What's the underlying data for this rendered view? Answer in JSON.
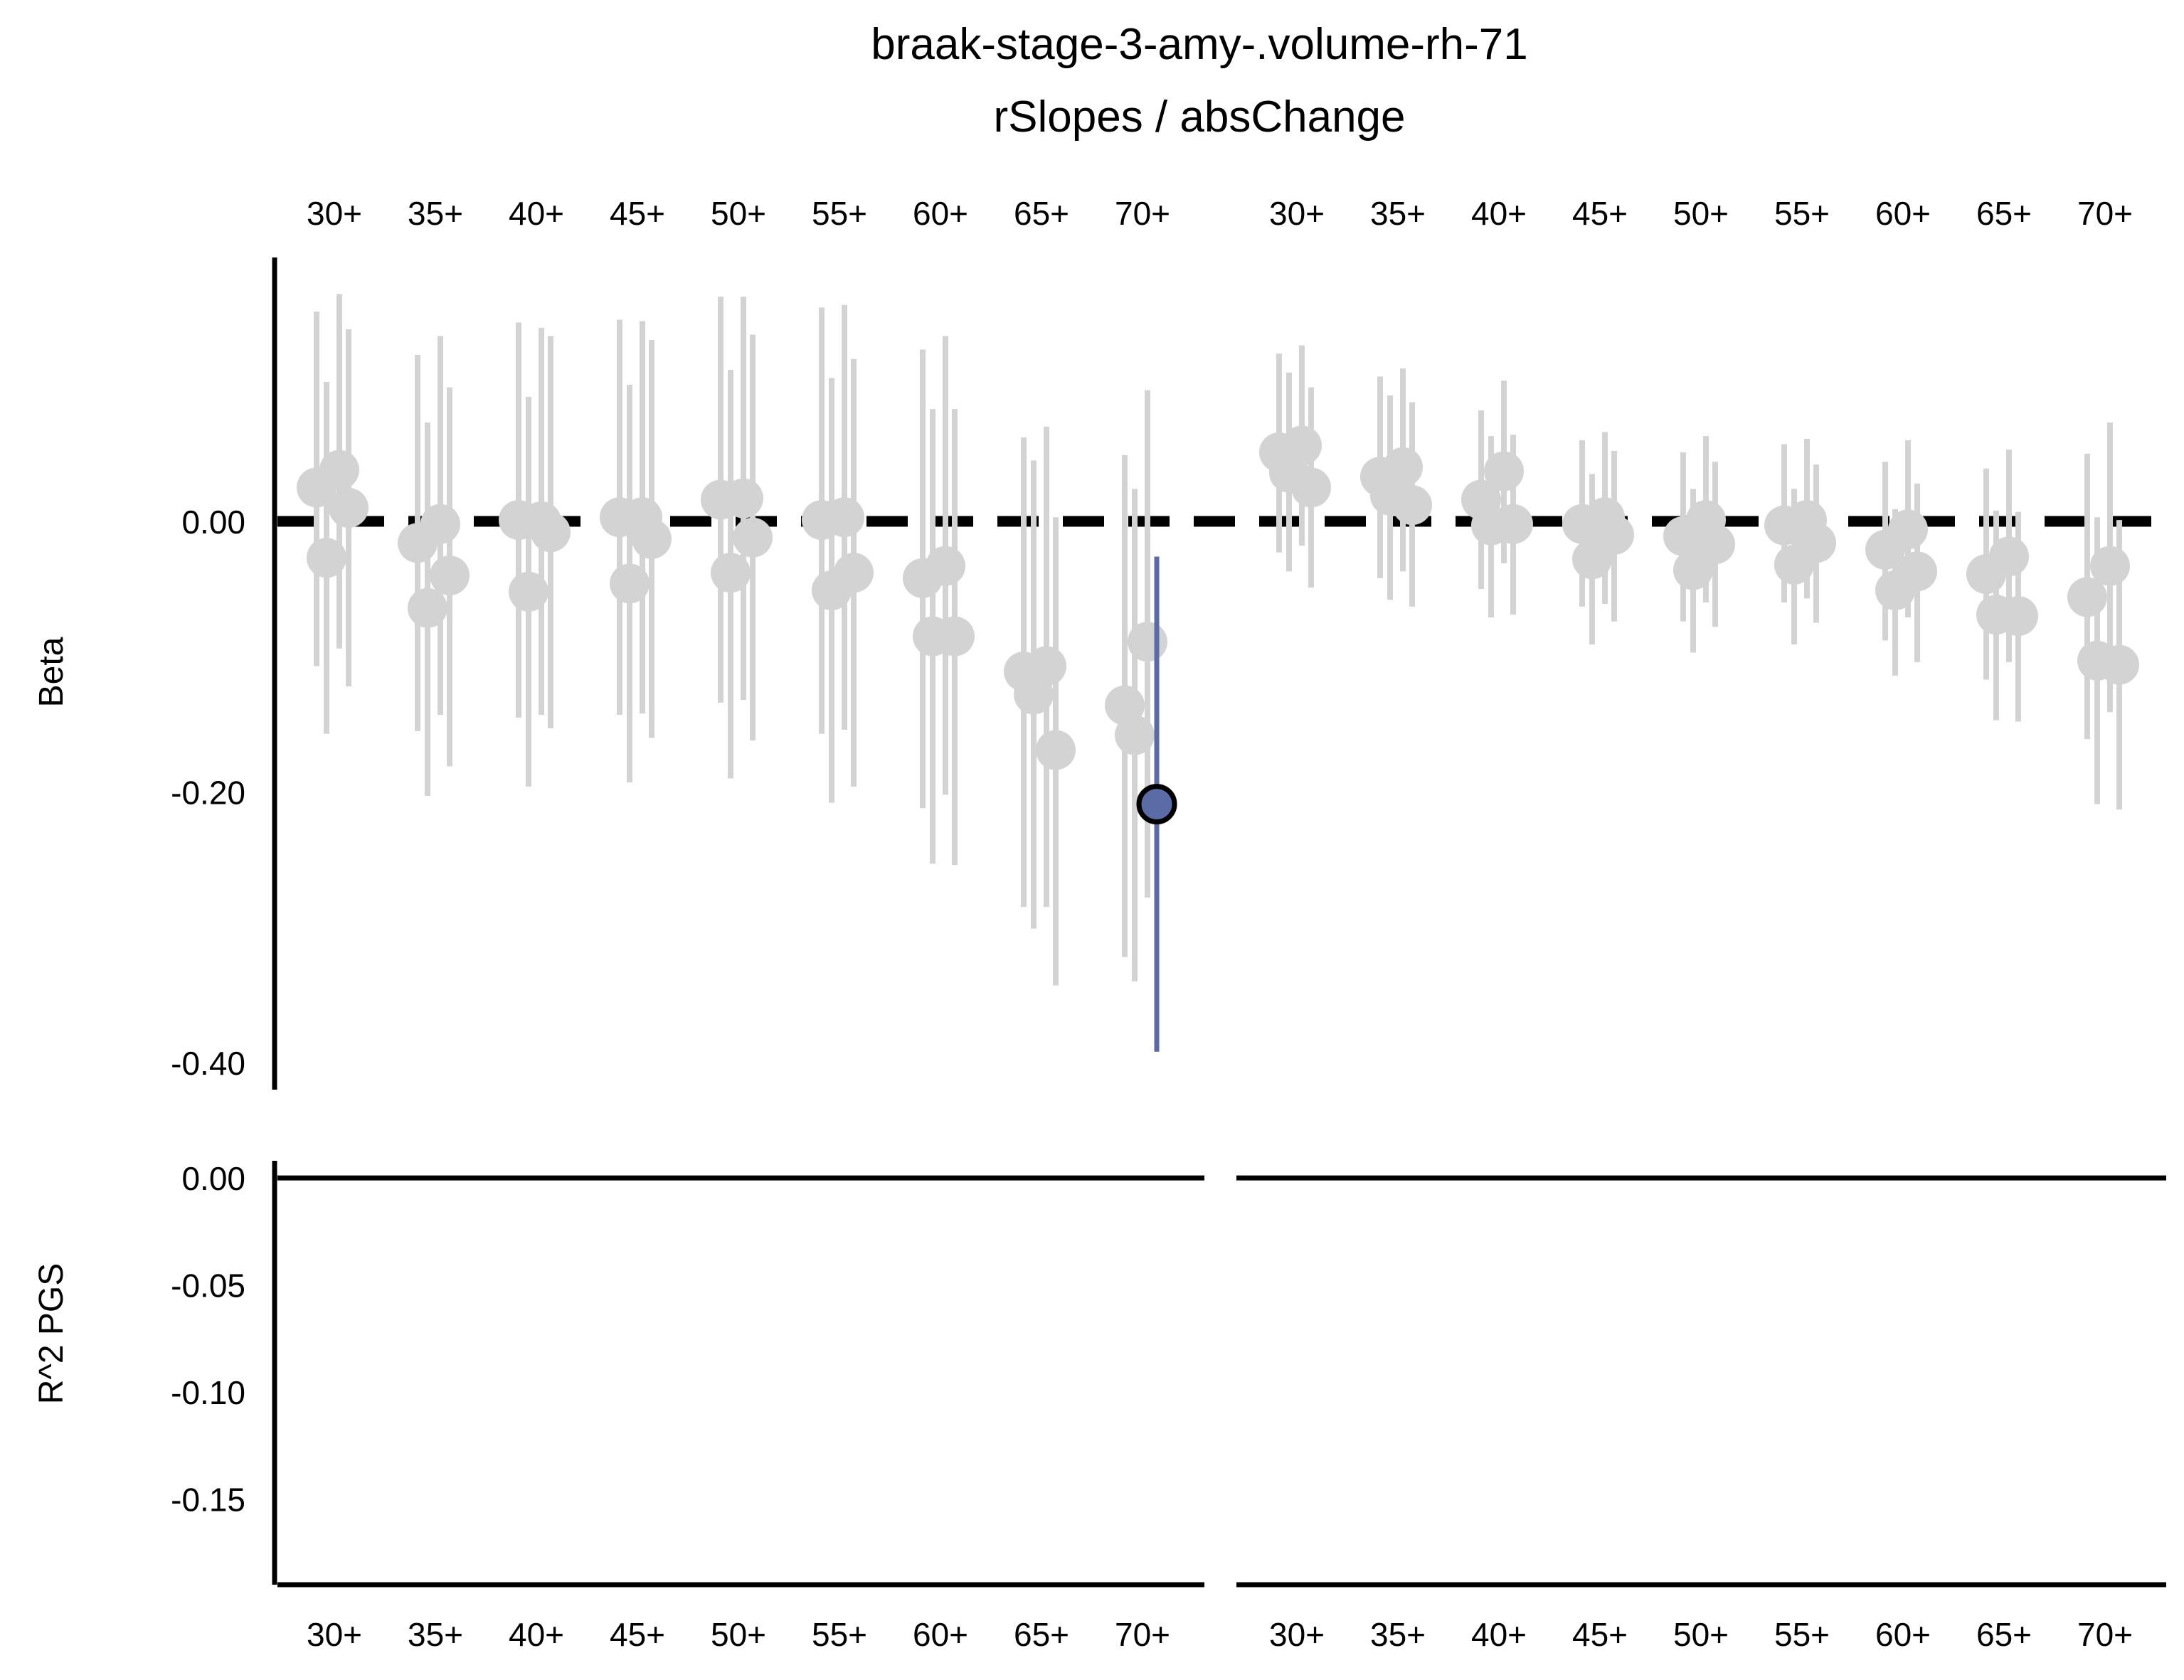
{
  "chart_data": {
    "type": "scatter",
    "title": "braak-stage-3-amy-.volume-rh-71",
    "subtitle": "rSlopes / absChange",
    "categories": [
      "30+",
      "35+",
      "40+",
      "45+",
      "50+",
      "55+",
      "60+",
      "65+",
      "70+"
    ],
    "panels": [
      {
        "ylabel": "Beta",
        "ylim": [
          -0.42,
          0.195
        ],
        "yticks": [
          0.0,
          -0.2,
          -0.4
        ],
        "ytick_labels": [
          "0.00",
          "-0.20",
          "-0.40"
        ],
        "reference_line": 0.0,
        "facets": [
          {
            "groups": [
              {
                "category": "30+",
                "points": [
                  {
                    "beta": 0.025,
                    "lo": -0.107,
                    "hi": 0.155
                  },
                  {
                    "beta": -0.027,
                    "lo": -0.157,
                    "hi": 0.103
                  },
                  {
                    "beta": 0.038,
                    "lo": -0.094,
                    "hi": 0.168
                  },
                  {
                    "beta": 0.01,
                    "lo": -0.122,
                    "hi": 0.142
                  }
                ]
              },
              {
                "category": "35+",
                "points": [
                  {
                    "beta": -0.016,
                    "lo": -0.155,
                    "hi": 0.123
                  },
                  {
                    "beta": -0.064,
                    "lo": -0.203,
                    "hi": 0.073
                  },
                  {
                    "beta": -0.002,
                    "lo": -0.143,
                    "hi": 0.137
                  },
                  {
                    "beta": -0.04,
                    "lo": -0.181,
                    "hi": 0.099
                  }
                ]
              },
              {
                "category": "40+",
                "points": [
                  {
                    "beta": 0.001,
                    "lo": -0.145,
                    "hi": 0.147
                  },
                  {
                    "beta": -0.052,
                    "lo": -0.196,
                    "hi": 0.092
                  },
                  {
                    "beta": 0.0,
                    "lo": -0.143,
                    "hi": 0.143
                  },
                  {
                    "beta": -0.008,
                    "lo": -0.153,
                    "hi": 0.137
                  }
                ]
              },
              {
                "category": "45+",
                "points": [
                  {
                    "beta": 0.003,
                    "lo": -0.143,
                    "hi": 0.149
                  },
                  {
                    "beta": -0.046,
                    "lo": -0.193,
                    "hi": 0.101
                  },
                  {
                    "beta": 0.003,
                    "lo": -0.142,
                    "hi": 0.148
                  },
                  {
                    "beta": -0.013,
                    "lo": -0.16,
                    "hi": 0.134
                  }
                ]
              },
              {
                "category": "50+",
                "points": [
                  {
                    "beta": 0.016,
                    "lo": -0.134,
                    "hi": 0.166
                  },
                  {
                    "beta": -0.038,
                    "lo": -0.19,
                    "hi": 0.112
                  },
                  {
                    "beta": 0.017,
                    "lo": -0.132,
                    "hi": 0.166
                  },
                  {
                    "beta": -0.012,
                    "lo": -0.162,
                    "hi": 0.138
                  }
                ]
              },
              {
                "category": "55+",
                "points": [
                  {
                    "beta": 0.001,
                    "lo": -0.157,
                    "hi": 0.158
                  },
                  {
                    "beta": -0.051,
                    "lo": -0.208,
                    "hi": 0.106
                  },
                  {
                    "beta": 0.003,
                    "lo": -0.154,
                    "hi": 0.16
                  },
                  {
                    "beta": -0.038,
                    "lo": -0.196,
                    "hi": 0.12
                  }
                ]
              },
              {
                "category": "60+",
                "points": [
                  {
                    "beta": -0.042,
                    "lo": -0.212,
                    "hi": 0.127
                  },
                  {
                    "beta": -0.085,
                    "lo": -0.253,
                    "hi": 0.083
                  },
                  {
                    "beta": -0.033,
                    "lo": -0.202,
                    "hi": 0.137
                  },
                  {
                    "beta": -0.085,
                    "lo": -0.254,
                    "hi": 0.083
                  }
                ]
              },
              {
                "category": "65+",
                "points": [
                  {
                    "beta": -0.111,
                    "lo": -0.285,
                    "hi": 0.062
                  },
                  {
                    "beta": -0.128,
                    "lo": -0.301,
                    "hi": 0.045
                  },
                  {
                    "beta": -0.107,
                    "lo": -0.285,
                    "hi": 0.07
                  },
                  {
                    "beta": -0.169,
                    "lo": -0.343,
                    "hi": 0.003
                  }
                ]
              },
              {
                "category": "70+",
                "points": [
                  {
                    "beta": -0.136,
                    "lo": -0.322,
                    "hi": 0.049
                  },
                  {
                    "beta": -0.158,
                    "lo": -0.34,
                    "hi": 0.024
                  },
                  {
                    "beta": -0.089,
                    "lo": -0.278,
                    "hi": 0.097
                  },
                  {
                    "beta": -0.209,
                    "lo": -0.392,
                    "hi": -0.026,
                    "highlight": true
                  }
                ]
              }
            ]
          },
          {
            "groups": [
              {
                "category": "30+",
                "points": [
                  {
                    "beta": 0.051,
                    "lo": -0.023,
                    "hi": 0.124
                  },
                  {
                    "beta": 0.036,
                    "lo": -0.037,
                    "hi": 0.11
                  },
                  {
                    "beta": 0.056,
                    "lo": -0.018,
                    "hi": 0.13
                  },
                  {
                    "beta": 0.025,
                    "lo": -0.049,
                    "hi": 0.099
                  }
                ]
              },
              {
                "category": "35+",
                "points": [
                  {
                    "beta": 0.033,
                    "lo": -0.042,
                    "hi": 0.107
                  },
                  {
                    "beta": 0.019,
                    "lo": -0.058,
                    "hi": 0.093
                  },
                  {
                    "beta": 0.04,
                    "lo": -0.037,
                    "hi": 0.113
                  },
                  {
                    "beta": 0.012,
                    "lo": -0.063,
                    "hi": 0.088
                  }
                ]
              },
              {
                "category": "40+",
                "points": [
                  {
                    "beta": 0.016,
                    "lo": -0.05,
                    "hi": 0.082
                  },
                  {
                    "beta": -0.003,
                    "lo": -0.071,
                    "hi": 0.063
                  },
                  {
                    "beta": 0.037,
                    "lo": -0.031,
                    "hi": 0.104
                  },
                  {
                    "beta": -0.002,
                    "lo": -0.069,
                    "hi": 0.064
                  }
                ]
              },
              {
                "category": "45+",
                "points": [
                  {
                    "beta": -0.002,
                    "lo": -0.063,
                    "hi": 0.06
                  },
                  {
                    "beta": -0.028,
                    "lo": -0.091,
                    "hi": 0.035
                  },
                  {
                    "beta": 0.003,
                    "lo": -0.061,
                    "hi": 0.066
                  },
                  {
                    "beta": -0.01,
                    "lo": -0.074,
                    "hi": 0.052
                  }
                ]
              },
              {
                "category": "50+",
                "points": [
                  {
                    "beta": -0.011,
                    "lo": -0.074,
                    "hi": 0.051
                  },
                  {
                    "beta": -0.036,
                    "lo": -0.097,
                    "hi": 0.024
                  },
                  {
                    "beta": 0.001,
                    "lo": -0.06,
                    "hi": 0.063
                  },
                  {
                    "beta": -0.017,
                    "lo": -0.078,
                    "hi": 0.044
                  }
                ]
              },
              {
                "category": "55+",
                "points": [
                  {
                    "beta": -0.003,
                    "lo": -0.06,
                    "hi": 0.057
                  },
                  {
                    "beta": -0.032,
                    "lo": -0.091,
                    "hi": 0.024
                  },
                  {
                    "beta": 0.001,
                    "lo": -0.057,
                    "hi": 0.061
                  },
                  {
                    "beta": -0.016,
                    "lo": -0.075,
                    "hi": 0.042
                  }
                ]
              },
              {
                "category": "60+",
                "points": [
                  {
                    "beta": -0.021,
                    "lo": -0.088,
                    "hi": 0.044
                  },
                  {
                    "beta": -0.051,
                    "lo": -0.114,
                    "hi": 0.009
                  },
                  {
                    "beta": -0.006,
                    "lo": -0.071,
                    "hi": 0.06
                  },
                  {
                    "beta": -0.037,
                    "lo": -0.104,
                    "hi": 0.028
                  }
                ]
              },
              {
                "category": "65+",
                "points": [
                  {
                    "beta": -0.039,
                    "lo": -0.117,
                    "hi": 0.039
                  },
                  {
                    "beta": -0.069,
                    "lo": -0.147,
                    "hi": 0.008
                  },
                  {
                    "beta": -0.026,
                    "lo": -0.104,
                    "hi": 0.053
                  },
                  {
                    "beta": -0.07,
                    "lo": -0.148,
                    "hi": 0.007
                  }
                ]
              },
              {
                "category": "70+",
                "points": [
                  {
                    "beta": -0.056,
                    "lo": -0.161,
                    "hi": 0.05
                  },
                  {
                    "beta": -0.103,
                    "lo": -0.209,
                    "hi": 0.003
                  },
                  {
                    "beta": -0.033,
                    "lo": -0.141,
                    "hi": 0.073
                  },
                  {
                    "beta": -0.106,
                    "lo": -0.213,
                    "hi": 0.001
                  }
                ]
              }
            ]
          }
        ]
      },
      {
        "ylabel": "R^2 PGS",
        "ylim": [
          -0.19,
          0.008
        ],
        "yticks": [
          0.0,
          -0.05,
          -0.1,
          -0.15
        ],
        "ytick_labels": [
          "0.00",
          "-0.05",
          "-0.10",
          "-0.15"
        ],
        "reference_line": 0.0
      }
    ],
    "colors": {
      "highlight": "#5a6ba6",
      "muted": "#d3d3d3",
      "reference": "#000000"
    },
    "grid": false,
    "legend": "none"
  }
}
